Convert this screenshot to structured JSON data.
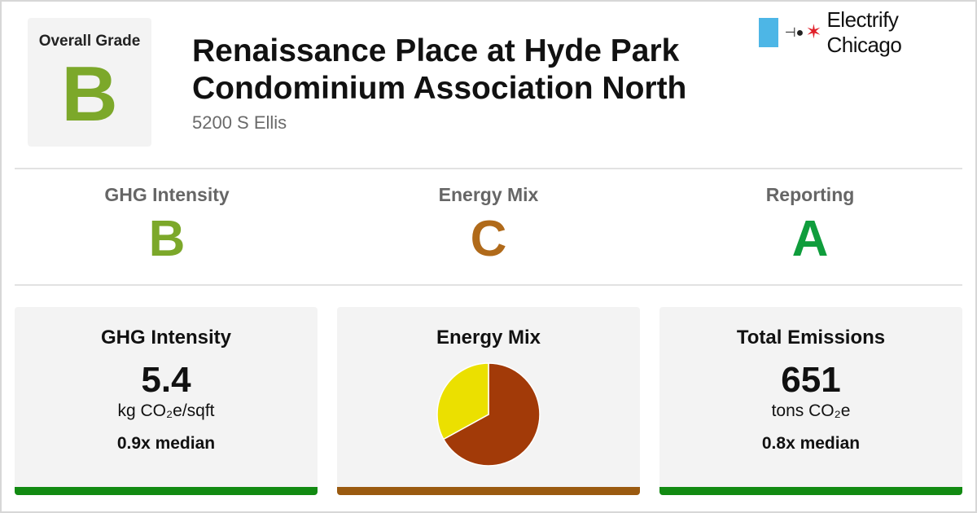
{
  "overall": {
    "label": "Overall Grade",
    "grade": "B",
    "color": "#7ca82a"
  },
  "building": {
    "title_line1": "Renaissance Place at Hyde Park",
    "title_line2": "Condominium Association North",
    "address": "5200 S Ellis"
  },
  "logo": {
    "text": "Electrify Chicago",
    "flag_color": "#4db6e6",
    "star_color": "#e0202a"
  },
  "subgrades": [
    {
      "name": "GHG Intensity",
      "grade": "B",
      "color": "#7ca82a"
    },
    {
      "name": "Energy Mix",
      "grade": "C",
      "color": "#b06a1a"
    },
    {
      "name": "Reporting",
      "grade": "A",
      "color": "#0f9d3c"
    }
  ],
  "cards": {
    "ghg": {
      "title": "GHG Intensity",
      "value": "5.4",
      "unit": "kg CO₂e/sqft",
      "median": "0.9x median",
      "bar_color": "#128a12"
    },
    "mix": {
      "title": "Energy Mix",
      "bar_color": "#9a5a10"
    },
    "emissions": {
      "title": "Total Emissions",
      "value": "651",
      "unit": "tons CO₂e",
      "median": "0.8x median",
      "bar_color": "#128a12"
    }
  },
  "chart_data": {
    "type": "pie",
    "title": "",
    "slices": [
      {
        "value": 0.67,
        "color": "#a23a08"
      },
      {
        "value": 0.33,
        "color": "#ebe000"
      }
    ]
  }
}
